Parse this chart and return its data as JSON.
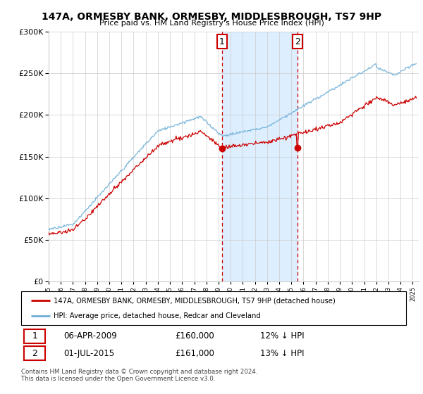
{
  "title": "147A, ORMESBY BANK, ORMESBY, MIDDLESBROUGH, TS7 9HP",
  "subtitle": "Price paid vs. HM Land Registry's House Price Index (HPI)",
  "legend_line1": "147A, ORMESBY BANK, ORMESBY, MIDDLESBROUGH, TS7 9HP (detached house)",
  "legend_line2": "HPI: Average price, detached house, Redcar and Cleveland",
  "annotation1_date": "06-APR-2009",
  "annotation1_price": "£160,000",
  "annotation1_note": "12% ↓ HPI",
  "annotation2_date": "01-JUL-2015",
  "annotation2_price": "£161,000",
  "annotation2_note": "13% ↓ HPI",
  "footer": "Contains HM Land Registry data © Crown copyright and database right 2024.\nThis data is licensed under the Open Government Licence v3.0.",
  "sale1_x": 2009.27,
  "sale1_y": 160000,
  "sale2_x": 2015.5,
  "sale2_y": 161000,
  "hpi_color": "#6baed6",
  "price_color": "#cc0000",
  "shading_color": "#ddeeff",
  "ylim": [
    0,
    300000
  ],
  "xlim_start": 1995,
  "xlim_end": 2025.5
}
